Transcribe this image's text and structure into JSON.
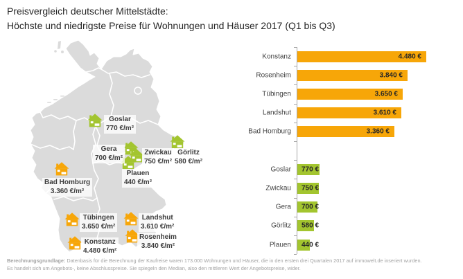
{
  "title": {
    "line1": "Preisvergleich deutscher Mittelstädte:",
    "line2": "Höchste und niedrigste Preise für Wohnungen und Häuser 2017 (Q1 bis Q3)"
  },
  "colors": {
    "orange": "#F7A608",
    "green": "#A3C52F",
    "map_gray": "#DBDBDB",
    "map_border": "#FFFFFF",
    "axis_gray": "#A6A6A6",
    "text_dark": "#3C3C3C",
    "footnote_gray": "#A3A3A3"
  },
  "map": {
    "markers": [
      {
        "name": "Goslar",
        "price": "770 €/m²",
        "color": "green",
        "icon_pos": [
          84,
          106
        ],
        "label_pos": [
          108,
          108
        ]
      },
      {
        "name": "Gera",
        "price": "700 €/m²",
        "color": "green",
        "icon_pos": [
          136,
          146
        ],
        "label_pos": [
          92,
          151
        ]
      },
      {
        "name": "Zwickau",
        "price": "750 €/m²",
        "color": "green",
        "icon_pos": [
          144,
          157
        ],
        "label_pos": [
          163,
          156
        ]
      },
      {
        "name": "Plauen",
        "price": "440 €/m²",
        "color": "green",
        "icon_pos": [
          132,
          167
        ],
        "label_pos": [
          134,
          186
        ]
      },
      {
        "name": "Görlitz",
        "price": "580 €/m²",
        "color": "green",
        "icon_pos": [
          203,
          137
        ],
        "label_pos": [
          207,
          156
        ]
      },
      {
        "name": "Bad Homburg",
        "price": "3.360 €/m²",
        "color": "orange",
        "icon_pos": [
          36,
          176
        ],
        "label_pos": [
          19,
          199
        ]
      },
      {
        "name": "Tübingen",
        "price": "3.650 €/m²",
        "color": "orange",
        "icon_pos": [
          51,
          249
        ],
        "label_pos": [
          73,
          250
        ]
      },
      {
        "name": "Landshut",
        "price": "3.610 €/m²",
        "color": "orange",
        "icon_pos": [
          136,
          248
        ],
        "label_pos": [
          158,
          250
        ]
      },
      {
        "name": "Konstanz",
        "price": "4.480 €/m²",
        "color": "orange",
        "icon_pos": [
          55,
          283
        ],
        "label_pos": [
          75,
          285
        ]
      },
      {
        "name": "Rosenheim",
        "price": "3.840 €/m²",
        "color": "orange",
        "icon_pos": [
          138,
          273
        ],
        "label_pos": [
          156,
          278
        ]
      }
    ]
  },
  "chart_data": {
    "type": "bar",
    "orientation": "horizontal",
    "value_suffix": "€",
    "axis": {
      "value_min": 0,
      "value_max": 4500,
      "gridlines": false,
      "legend": "none",
      "category_ticks": true
    },
    "groups": [
      {
        "name": "hoechste-preise",
        "color": "#F7A608",
        "items": [
          {
            "label": "Konstanz",
            "value": 4480,
            "value_label": "4.480 €"
          },
          {
            "label": "Rosenheim",
            "value": 3840,
            "value_label": "3.840 €"
          },
          {
            "label": "Tübingen",
            "value": 3650,
            "value_label": "3.650 €"
          },
          {
            "label": "Landshut",
            "value": 3610,
            "value_label": "3.610 €"
          },
          {
            "label": "Bad Homburg",
            "value": 3360,
            "value_label": "3.360 €"
          }
        ]
      },
      {
        "name": "niedrigste-preise",
        "color": "#A3C52F",
        "items": [
          {
            "label": "Goslar",
            "value": 770,
            "value_label": "770 €"
          },
          {
            "label": "Zwickau",
            "value": 750,
            "value_label": "750 €"
          },
          {
            "label": "Gera",
            "value": 700,
            "value_label": "700 €"
          },
          {
            "label": "Görlitz",
            "value": 580,
            "value_label": "580 €"
          },
          {
            "label": "Plauen",
            "value": 440,
            "value_label": "440 €"
          }
        ]
      }
    ]
  },
  "footnote": {
    "lead": "Berechnungsgrundlage:",
    "line1": " Datenbasis für die Berechnung der Kaufreise waren 173.000 Wohnungen und Häuser, die in den ersten drei Quartalen 2017 auf immowelt.de inseriert wurden.",
    "line2": "Es handelt sich um Angebots-, keine Abschlusspreise. Sie spiegeln den Median, also den mittleren Wert der Angebotspreise, wider."
  }
}
